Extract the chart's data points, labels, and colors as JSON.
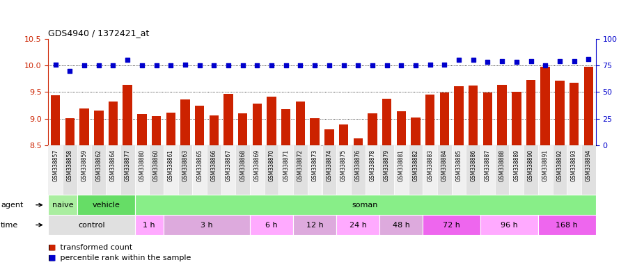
{
  "title": "GDS4940 / 1372421_at",
  "samples": [
    "GSM338857",
    "GSM338858",
    "GSM338859",
    "GSM338862",
    "GSM338864",
    "GSM338877",
    "GSM338880",
    "GSM338860",
    "GSM338861",
    "GSM338863",
    "GSM338865",
    "GSM338866",
    "GSM338867",
    "GSM338868",
    "GSM338869",
    "GSM338870",
    "GSM338871",
    "GSM338872",
    "GSM338873",
    "GSM338874",
    "GSM338875",
    "GSM338876",
    "GSM338878",
    "GSM338879",
    "GSM338881",
    "GSM338882",
    "GSM338883",
    "GSM338884",
    "GSM338885",
    "GSM338886",
    "GSM338887",
    "GSM338888",
    "GSM338889",
    "GSM338890",
    "GSM338891",
    "GSM338892",
    "GSM338893",
    "GSM338894"
  ],
  "bar_values": [
    9.44,
    9.01,
    9.2,
    9.16,
    9.33,
    9.63,
    9.09,
    9.05,
    9.11,
    9.36,
    9.24,
    9.06,
    9.47,
    9.1,
    9.28,
    9.41,
    9.18,
    9.33,
    9.01,
    8.8,
    8.89,
    8.63,
    9.1,
    9.37,
    9.14,
    9.02,
    9.45,
    9.49,
    9.61,
    9.62,
    9.49,
    9.63,
    9.5,
    9.73,
    9.97,
    9.72,
    9.67,
    9.97
  ],
  "percentile_values": [
    76,
    70,
    75,
    75,
    75,
    80,
    75,
    75,
    75,
    76,
    75,
    75,
    75,
    75,
    75,
    75,
    75,
    75,
    75,
    75,
    75,
    75,
    75,
    75,
    75,
    75,
    76,
    76,
    80,
    80,
    78,
    79,
    78,
    79,
    75,
    79,
    79,
    81
  ],
  "ylim_left": [
    8.5,
    10.5
  ],
  "ylim_right": [
    0,
    100
  ],
  "yticks_left": [
    8.5,
    9.0,
    9.5,
    10.0,
    10.5
  ],
  "yticks_right": [
    0,
    25,
    50,
    75,
    100
  ],
  "bar_color": "#cc2200",
  "dot_color": "#0000cc",
  "background_color": "#ffffff",
  "agent_groups": [
    {
      "label": "naive",
      "start": 0,
      "end": 2,
      "color": "#aaeea0"
    },
    {
      "label": "vehicle",
      "start": 2,
      "end": 6,
      "color": "#66dd66"
    },
    {
      "label": "soman",
      "start": 6,
      "end": 38,
      "color": "#88ee88"
    }
  ],
  "time_groups": [
    {
      "label": "control",
      "start": 0,
      "end": 6,
      "color": "#e0e0e0"
    },
    {
      "label": "1 h",
      "start": 6,
      "end": 8,
      "color": "#ffaaff"
    },
    {
      "label": "3 h",
      "start": 8,
      "end": 14,
      "color": "#ddaadd"
    },
    {
      "label": "6 h",
      "start": 14,
      "end": 17,
      "color": "#ffaaff"
    },
    {
      "label": "12 h",
      "start": 17,
      "end": 20,
      "color": "#ddaadd"
    },
    {
      "label": "24 h",
      "start": 20,
      "end": 23,
      "color": "#ffaaff"
    },
    {
      "label": "48 h",
      "start": 23,
      "end": 26,
      "color": "#ddaadd"
    },
    {
      "label": "72 h",
      "start": 26,
      "end": 30,
      "color": "#ee66ee"
    },
    {
      "label": "96 h",
      "start": 30,
      "end": 34,
      "color": "#ffaaff"
    },
    {
      "label": "168 h",
      "start": 34,
      "end": 38,
      "color": "#ee66ee"
    }
  ],
  "grid_lines": [
    9.0,
    9.5,
    10.0
  ],
  "xtick_colors": [
    "#f0f0f0",
    "#e0e0e0"
  ]
}
